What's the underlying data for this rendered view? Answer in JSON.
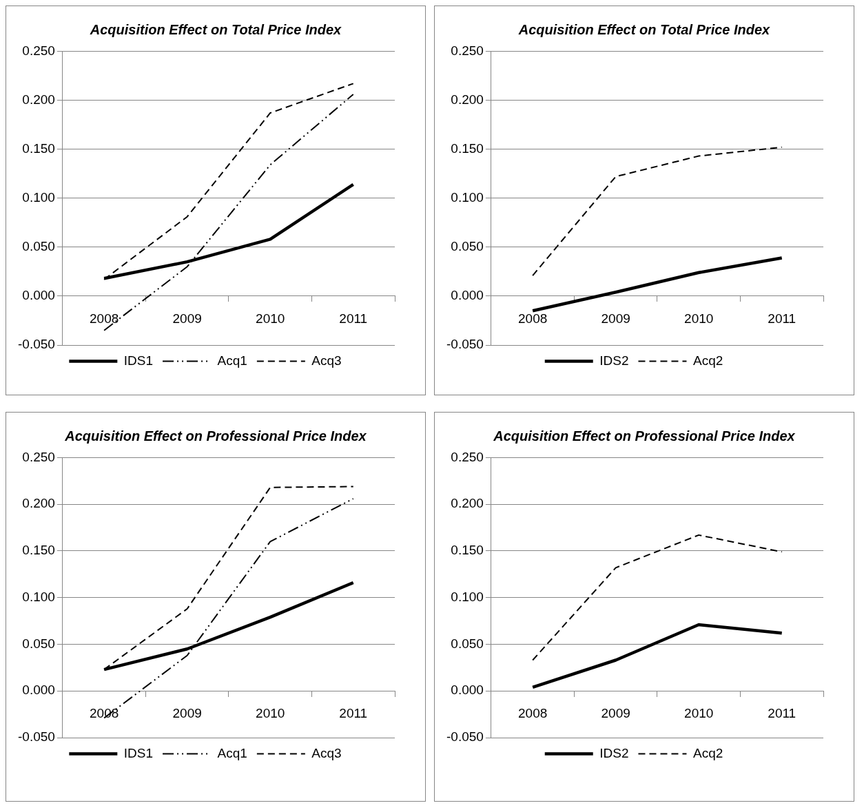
{
  "chart_data": [
    {
      "type": "line",
      "title": "Acquisition Effect on Total Price Index",
      "categories": [
        "2008",
        "2009",
        "2010",
        "2011"
      ],
      "series": [
        {
          "name": "IDS1",
          "color": "#000000",
          "line_style": "solid",
          "values": [
            0.018,
            0.035,
            0.058,
            0.114
          ]
        },
        {
          "name": "Acq1",
          "color": "#000000",
          "line_style": "dotted",
          "values": [
            -0.035,
            0.03,
            0.134,
            0.206
          ]
        },
        {
          "name": "Acq3",
          "color": "#000000",
          "line_style": "dashed",
          "values": [
            0.017,
            0.081,
            0.187,
            0.217
          ]
        }
      ],
      "ylim": [
        -0.05,
        0.25
      ],
      "yticks": [
        {
          "value": -0.05,
          "label": "-0.050"
        },
        {
          "value": 0,
          "label": "0.000"
        },
        {
          "value": 0.05,
          "label": "0.050"
        },
        {
          "value": 0.1,
          "label": "0.100"
        },
        {
          "value": 0.15,
          "label": "0.150"
        },
        {
          "value": 0.2,
          "label": "0.200"
        },
        {
          "value": 0.25,
          "label": "0.250"
        }
      ],
      "grid": "y",
      "legend": "bottom",
      "marker": "none"
    },
    {
      "type": "line",
      "title": "Acquisition Effect on Total Price Index",
      "categories": [
        "2008",
        "2009",
        "2010",
        "2011"
      ],
      "series": [
        {
          "name": "IDS2",
          "color": "#000000",
          "line_style": "solid",
          "values": [
            -0.015,
            0.004,
            0.024,
            0.039
          ]
        },
        {
          "name": "Acq2",
          "color": "#000000",
          "line_style": "dashed",
          "values": [
            0.021,
            0.122,
            0.143,
            0.152
          ]
        }
      ],
      "ylim": [
        -0.05,
        0.25
      ],
      "yticks": [
        {
          "value": -0.05,
          "label": "-0.050"
        },
        {
          "value": 0,
          "label": "0.000"
        },
        {
          "value": 0.05,
          "label": "0.050"
        },
        {
          "value": 0.1,
          "label": "0.100"
        },
        {
          "value": 0.15,
          "label": "0.150"
        },
        {
          "value": 0.2,
          "label": "0.200"
        },
        {
          "value": 0.25,
          "label": "0.250"
        }
      ],
      "grid": "y",
      "legend": "bottom",
      "marker": "none"
    },
    {
      "type": "line",
      "title": "Acquisition Effect on Professional Price Index",
      "categories": [
        "2008",
        "2009",
        "2010",
        "2011"
      ],
      "series": [
        {
          "name": "IDS1",
          "color": "#000000",
          "line_style": "solid",
          "values": [
            0.023,
            0.045,
            0.079,
            0.116
          ]
        },
        {
          "name": "Acq1",
          "color": "#000000",
          "line_style": "dotted",
          "values": [
            -0.029,
            0.038,
            0.16,
            0.206
          ]
        },
        {
          "name": "Acq3",
          "color": "#000000",
          "line_style": "dashed",
          "values": [
            0.023,
            0.088,
            0.218,
            0.219
          ]
        }
      ],
      "ylim": [
        -0.05,
        0.25
      ],
      "yticks": [
        {
          "value": -0.05,
          "label": "-0.050"
        },
        {
          "value": 0,
          "label": "0.000"
        },
        {
          "value": 0.05,
          "label": "0.050"
        },
        {
          "value": 0.1,
          "label": "0.100"
        },
        {
          "value": 0.15,
          "label": "0.150"
        },
        {
          "value": 0.2,
          "label": "0.200"
        },
        {
          "value": 0.25,
          "label": "0.250"
        }
      ],
      "grid": "y",
      "legend": "bottom",
      "marker": "none"
    },
    {
      "type": "line",
      "title": "Acquisition Effect on Professional Price Index",
      "categories": [
        "2008",
        "2009",
        "2010",
        "2011"
      ],
      "series": [
        {
          "name": "IDS2",
          "color": "#000000",
          "line_style": "solid",
          "values": [
            0.004,
            0.033,
            0.071,
            0.062
          ]
        },
        {
          "name": "Acq2",
          "color": "#000000",
          "line_style": "dashed",
          "values": [
            0.033,
            0.132,
            0.167,
            0.149
          ]
        }
      ],
      "ylim": [
        -0.05,
        0.25
      ],
      "yticks": [
        {
          "value": -0.05,
          "label": "-0.050"
        },
        {
          "value": 0,
          "label": "0.000"
        },
        {
          "value": 0.05,
          "label": "0.050"
        },
        {
          "value": 0.1,
          "label": "0.100"
        },
        {
          "value": 0.15,
          "label": "0.150"
        },
        {
          "value": 0.2,
          "label": "0.200"
        },
        {
          "value": 0.25,
          "label": "0.250"
        }
      ],
      "grid": "y",
      "legend": "bottom",
      "marker": "none"
    }
  ]
}
